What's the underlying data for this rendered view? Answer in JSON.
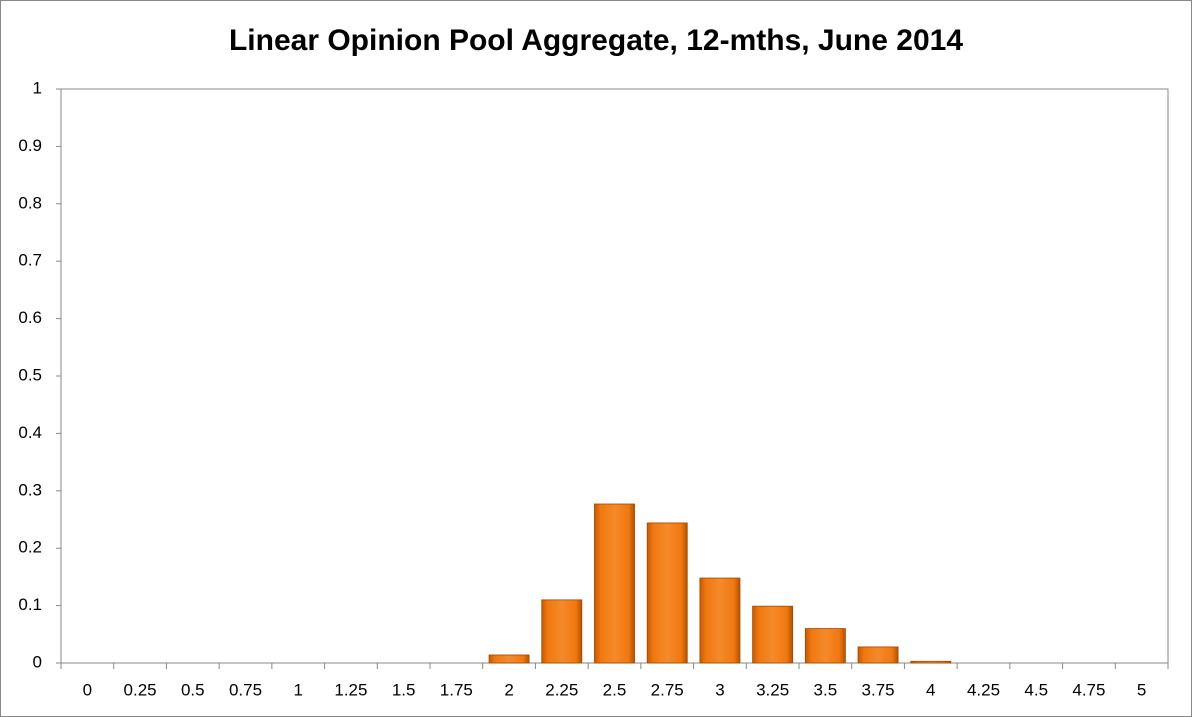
{
  "chart_data": {
    "type": "bar",
    "title": "Linear Opinion Pool Aggregate, 12-mths, June 2014",
    "categories": [
      "0",
      "0.25",
      "0.5",
      "0.75",
      "1",
      "1.25",
      "1.5",
      "1.75",
      "2",
      "2.25",
      "2.5",
      "2.75",
      "3",
      "3.25",
      "3.5",
      "3.75",
      "4",
      "4.25",
      "4.5",
      "4.75",
      "5"
    ],
    "values": [
      0,
      0,
      0,
      0,
      0,
      0,
      0,
      0,
      0.014,
      0.11,
      0.277,
      0.244,
      0.148,
      0.099,
      0.06,
      0.028,
      0.003,
      0,
      0,
      0,
      0
    ],
    "color": "#f07810",
    "ylim": [
      0,
      1
    ],
    "yticks": [
      0,
      0.1,
      0.2,
      0.3,
      0.4,
      0.5,
      0.6,
      0.7,
      0.8,
      0.9,
      1
    ],
    "grid": false
  }
}
